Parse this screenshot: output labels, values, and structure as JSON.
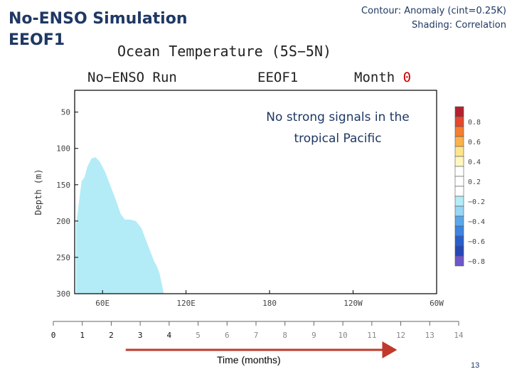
{
  "slide": {
    "title_line1": "No-ENSO Simulation",
    "title_line2": "EEOF1",
    "contour_note": "Contour: Anomaly (cint=0.25K)",
    "shading_note": "Shading: Correlation",
    "annotation_line1": "No strong signals in the",
    "annotation_line2": "tropical Pacific",
    "time_label": "Time (months)",
    "page_number": "13"
  },
  "chart_data": {
    "type": "area",
    "title": "Ocean Temperature (5S−5N)",
    "run_label": "No−ENSO Run",
    "eof_label": "EEOF1",
    "month_label": "Month",
    "month_value": "0",
    "ylabel": "Depth (m)",
    "x_ticks": [
      {
        "lon": 60,
        "label": "60E"
      },
      {
        "lon": 120,
        "label": "120E"
      },
      {
        "lon": 180,
        "label": "180"
      },
      {
        "lon": 240,
        "label": "120W"
      },
      {
        "lon": 300,
        "label": "60W"
      }
    ],
    "y_ticks": [
      50,
      100,
      150,
      200,
      250,
      300
    ],
    "xlim": [
      40,
      300
    ],
    "ylim": [
      20,
      300
    ],
    "shaded_region": {
      "class": "-0.4 to -0.2",
      "color": "#b3ecf6",
      "boundary": [
        {
          "lon": 41,
          "depth": 300
        },
        {
          "lon": 41,
          "depth": 205
        },
        {
          "lon": 43,
          "depth": 175
        },
        {
          "lon": 45,
          "depth": 145
        },
        {
          "lon": 47,
          "depth": 140
        },
        {
          "lon": 49,
          "depth": 126
        },
        {
          "lon": 52,
          "depth": 114
        },
        {
          "lon": 55,
          "depth": 112
        },
        {
          "lon": 58,
          "depth": 118
        },
        {
          "lon": 62,
          "depth": 133
        },
        {
          "lon": 66,
          "depth": 153
        },
        {
          "lon": 70,
          "depth": 173
        },
        {
          "lon": 73,
          "depth": 190
        },
        {
          "lon": 76,
          "depth": 198
        },
        {
          "lon": 80,
          "depth": 198
        },
        {
          "lon": 84,
          "depth": 200
        },
        {
          "lon": 88,
          "depth": 210
        },
        {
          "lon": 91,
          "depth": 225
        },
        {
          "lon": 94,
          "depth": 240
        },
        {
          "lon": 97,
          "depth": 255
        },
        {
          "lon": 99,
          "depth": 262
        },
        {
          "lon": 101,
          "depth": 272
        },
        {
          "lon": 103,
          "depth": 290
        },
        {
          "lon": 104,
          "depth": 300
        }
      ]
    },
    "colorbar": [
      {
        "label": "",
        "color": "#b5202e"
      },
      {
        "label": "0.8",
        "color": "#e4482e"
      },
      {
        "label": "",
        "color": "#f57f30"
      },
      {
        "label": "0.6",
        "color": "#fbb24c"
      },
      {
        "label": "",
        "color": "#fde58d"
      },
      {
        "label": "0.4",
        "color": "#fff7c0"
      },
      {
        "label": "",
        "color": "#ffffff"
      },
      {
        "label": "0.2",
        "color": "#ffffff"
      },
      {
        "label": "",
        "color": "#ffffff"
      },
      {
        "label": "−0.2",
        "color": "#b3ecf6"
      },
      {
        "label": "",
        "color": "#99d5f5"
      },
      {
        "label": "−0.4",
        "color": "#5aa8ea"
      },
      {
        "label": "",
        "color": "#3e84e0"
      },
      {
        "label": "−0.6",
        "color": "#2a5fcb"
      },
      {
        "label": "",
        "color": "#2747b5"
      },
      {
        "label": "−0.8",
        "color": "#6f56c9"
      }
    ],
    "timeline": {
      "ticks": [
        "0",
        "1",
        "2",
        "3",
        "4",
        "5",
        "6",
        "7",
        "8",
        "9",
        "10",
        "11",
        "12",
        "13",
        "14"
      ],
      "highlight_months": [
        0,
        1,
        2,
        3,
        4
      ],
      "arrow_from": 2.5,
      "arrow_to": 11.8
    }
  }
}
